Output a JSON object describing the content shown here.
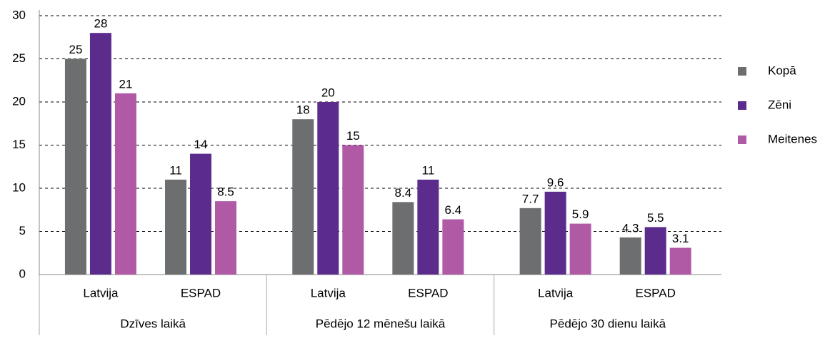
{
  "chart_data": {
    "type": "bar",
    "categories": [
      "Latvija",
      "ESPAD",
      "Latvija",
      "ESPAD",
      "Latvija",
      "ESPAD"
    ],
    "groups": [
      "Dzīves laikā",
      "Pēdējo 12 mēnešu laikā",
      "Pēdējo 30 dienu laikā"
    ],
    "series": [
      {
        "name": "Kopā",
        "color": "#6d6e70",
        "values": [
          25,
          11,
          18,
          8.4,
          7.7,
          4.3
        ]
      },
      {
        "name": "Zēni",
        "color": "#5b2c8c",
        "values": [
          28,
          14,
          20,
          11,
          9.6,
          5.5
        ]
      },
      {
        "name": "Meitenes",
        "color": "#b05aa6",
        "values": [
          21,
          8.5,
          15,
          6.4,
          5.9,
          3.1
        ]
      }
    ],
    "ylim": [
      0,
      30
    ],
    "yticks": [
      0,
      5,
      10,
      15,
      20,
      25,
      30
    ],
    "grid": true,
    "legend": "right"
  }
}
